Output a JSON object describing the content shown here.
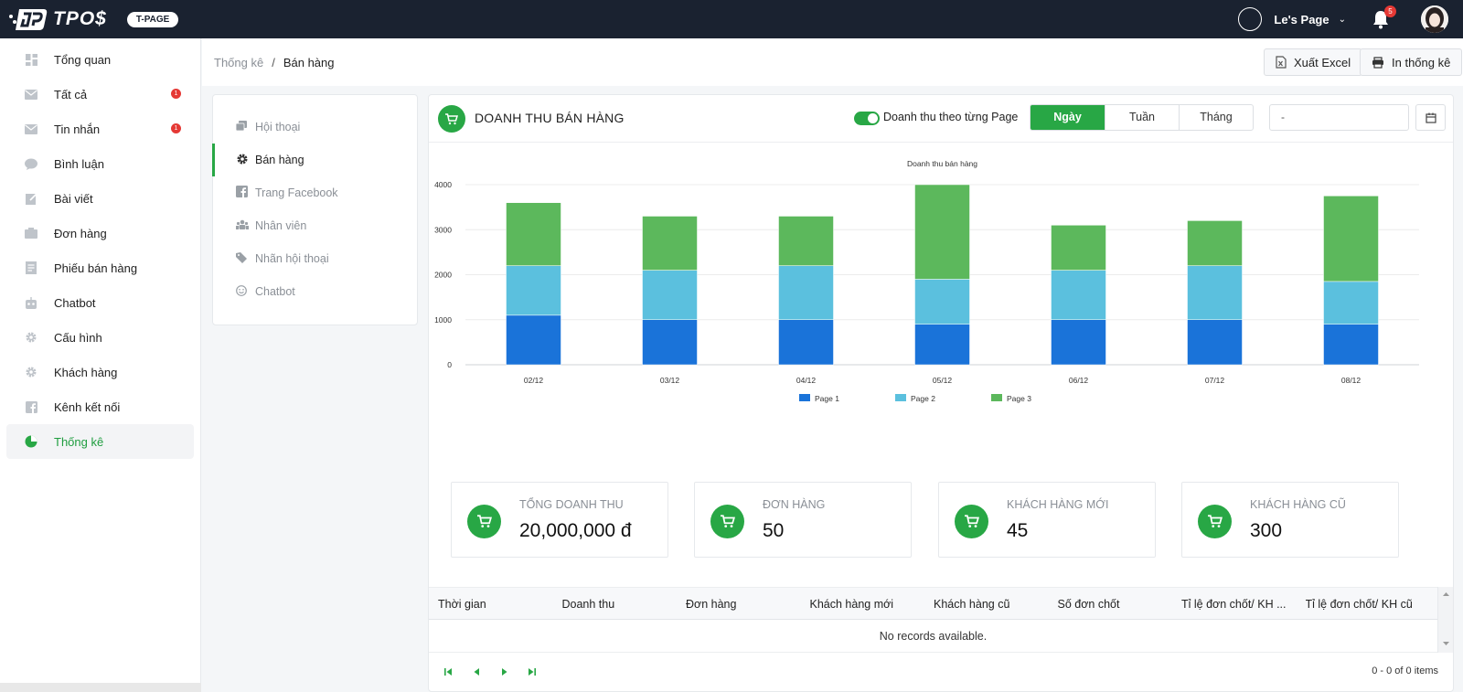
{
  "header": {
    "logo_text": "TPO$",
    "badge": "T-PAGE",
    "page_name": "Le's Page",
    "notification_count": "5"
  },
  "sidebar": {
    "items": [
      {
        "label": "Tổng quan",
        "icon": "dashboard-icon"
      },
      {
        "label": "Tất cả",
        "icon": "mail-icon",
        "badge": "1"
      },
      {
        "label": "Tin nhắn",
        "icon": "message-icon",
        "badge": "1"
      },
      {
        "label": "Bình luận",
        "icon": "comment-icon"
      },
      {
        "label": "Bài viết",
        "icon": "edit-icon"
      },
      {
        "label": "Đơn hàng",
        "icon": "order-icon"
      },
      {
        "label": "Phiếu bán hàng",
        "icon": "receipt-icon"
      },
      {
        "label": "Chatbot",
        "icon": "bot-icon"
      },
      {
        "label": "Cấu hình",
        "icon": "gear-icon"
      },
      {
        "label": "Khách hàng",
        "icon": "gear-icon"
      },
      {
        "label": "Kênh kết nối",
        "icon": "facebook-icon"
      },
      {
        "label": "Thống kê",
        "icon": "pie-chart-icon",
        "active": true
      }
    ]
  },
  "breadcrumb": {
    "parent": "Thống kê",
    "separator": "/",
    "current": "Bán hàng"
  },
  "toolbar": {
    "export_label": "Xuất Excel",
    "print_label": "In thống kê"
  },
  "submenu": {
    "items": [
      {
        "label": "Hội thoại",
        "icon": "chat-icon"
      },
      {
        "label": "Bán hàng",
        "icon": "gear-icon",
        "active": true
      },
      {
        "label": "Trang Facebook",
        "icon": "facebook-icon"
      },
      {
        "label": "Nhân viên",
        "icon": "users-icon"
      },
      {
        "label": "Nhãn hội thoại",
        "icon": "tag-icon"
      },
      {
        "label": "Chatbot",
        "icon": "smile-icon"
      }
    ]
  },
  "panel": {
    "title": "DOANH THU BÁN HÀNG",
    "toggle_label": "Doanh thu theo từng Page",
    "toggle_on": true,
    "periods": [
      "Ngày",
      "Tuần",
      "Tháng"
    ],
    "active_period": "Ngày",
    "date_value": "-",
    "accent": "#28a745"
  },
  "chart_data": {
    "type": "bar",
    "stacked": true,
    "title": "Doanh thu bán hàng",
    "categories": [
      "02/12",
      "03/12",
      "04/12",
      "05/12",
      "06/12",
      "07/12",
      "08/12"
    ],
    "series": [
      {
        "name": "Page 1",
        "color": "#1a73d9",
        "values": [
          1100,
          1000,
          1000,
          900,
          1000,
          1000,
          900
        ]
      },
      {
        "name": "Page 2",
        "color": "#5bc0de",
        "values": [
          1100,
          1100,
          1200,
          1000,
          1100,
          1200,
          950
        ]
      },
      {
        "name": "Page 3",
        "color": "#5cb85c",
        "values": [
          1400,
          1200,
          1100,
          2100,
          1000,
          1000,
          1900
        ]
      }
    ],
    "yticks": [
      "0",
      "1000",
      "2000",
      "3000",
      "4000"
    ],
    "ylim": [
      0,
      4000
    ],
    "grid": true,
    "legend": "bottom"
  },
  "stats": [
    {
      "label": "Tổng doanh thu",
      "value": "20,000,000 đ"
    },
    {
      "label": "Đơn hàng",
      "value": "50"
    },
    {
      "label": "Khách hàng mới",
      "value": "45"
    },
    {
      "label": "Khách hàng cũ",
      "value": "300"
    }
  ],
  "table": {
    "columns": [
      "Thời gian",
      "Doanh thu",
      "Đơn hàng",
      "Khách hàng mới",
      "Khách hàng cũ",
      "Số đơn chốt",
      "Tỉ lệ đơn chốt/ KH ...",
      "Tỉ lệ đơn chốt/ KH cũ"
    ],
    "empty_text": "No records available.",
    "pager_info": "0 - 0 of 0 items"
  }
}
